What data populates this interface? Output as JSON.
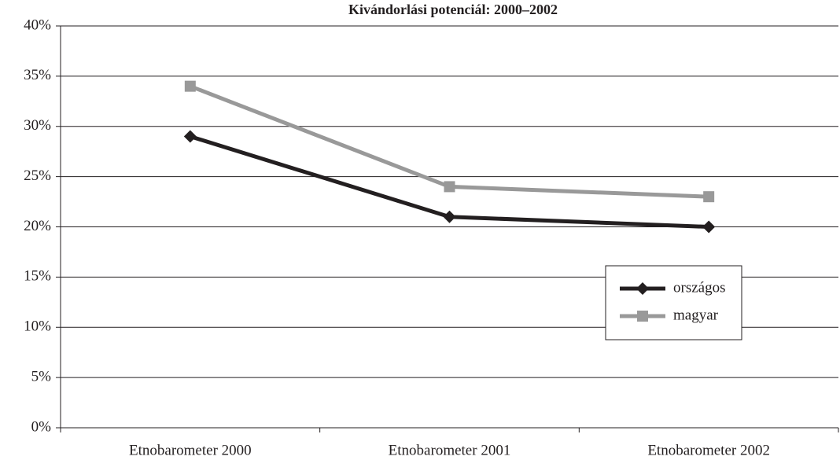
{
  "chart_data": {
    "type": "line",
    "title": "Kivándorlási potenciál: 2000–2002",
    "categories": [
      "Etnobarometer 2000",
      "Etnobarometer 2001",
      "Etnobarometer 2002"
    ],
    "series": [
      {
        "name": "országos",
        "color": "#231f20",
        "marker": "diamond",
        "values": [
          29,
          21,
          20
        ]
      },
      {
        "name": "magyar",
        "color": "#999999",
        "marker": "square",
        "values": [
          34,
          24,
          23
        ]
      }
    ],
    "ylim": [
      0,
      40
    ],
    "yticks": [
      {
        "value": 0,
        "label": "0%"
      },
      {
        "value": 5,
        "label": "5%"
      },
      {
        "value": 10,
        "label": "10%"
      },
      {
        "value": 15,
        "label": "15%"
      },
      {
        "value": 20,
        "label": "20%"
      },
      {
        "value": 25,
        "label": "25%"
      },
      {
        "value": 30,
        "label": "30%"
      },
      {
        "value": 35,
        "label": "35%"
      },
      {
        "value": 40,
        "label": "40%"
      }
    ],
    "grid": true
  }
}
